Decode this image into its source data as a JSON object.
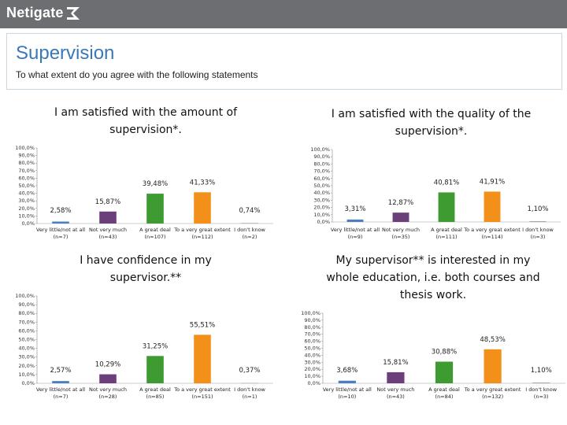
{
  "header": {
    "logo_text": "Netigate"
  },
  "page": {
    "title": "Supervision",
    "subtitle": "To what extent do you agree with the following statements"
  },
  "colors": {
    "header": "#6d6e71",
    "title": "#3b78b8",
    "bars": [
      "#4a7fc1",
      "#6b3f7a",
      "#3e9b31",
      "#f29019",
      "#a6a6a6"
    ]
  },
  "chart_data": [
    {
      "type": "bar",
      "title": "I am satisfied with the amount of supervision*.",
      "categories": [
        "Very little/not at all (n=7)",
        "Not very much (n=43)",
        "A great deal (n=107)",
        "To a very great extent (n=112)",
        "I don't know (n=2)"
      ],
      "values": [
        2.58,
        15.87,
        39.48,
        41.33,
        0.74
      ],
      "labels": [
        "2,58%",
        "15,87%",
        "39,48%",
        "41,33%",
        "0,74%"
      ],
      "yticks": [
        "100,0%",
        "90,0%",
        "80,0%",
        "70,0%",
        "60,0%",
        "50,0%",
        "40,0%",
        "30,0%",
        "20,0%",
        "10,0%",
        "0,0%"
      ],
      "ylim": [
        0,
        100
      ]
    },
    {
      "type": "bar",
      "title": "I am satisfied with the quality of the supervision*.",
      "categories": [
        "Very little/not at all (n=9)",
        "Not very much (n=35)",
        "A great deal (n=111)",
        "To a very great extent (n=114)",
        "I don't know (n=3)"
      ],
      "values": [
        3.31,
        12.87,
        40.81,
        41.91,
        1.1
      ],
      "labels": [
        "3,31%",
        "12,87%",
        "40,81%",
        "41,91%",
        "1,10%"
      ],
      "yticks": [
        "100,0%",
        "90,0%",
        "80,0%",
        "70,0%",
        "60,0%",
        "50,0%",
        "40,0%",
        "30,0%",
        "20,0%",
        "10,0%",
        "0,0%"
      ],
      "ylim": [
        0,
        100
      ]
    },
    {
      "type": "bar",
      "title": "I have confidence in my supervisor.**",
      "categories": [
        "Very little/not at all (n=7)",
        "Not very much (n=28)",
        "A great deal (n=85)",
        "To a very great extent (n=151)",
        "I don't know (n=1)"
      ],
      "values": [
        2.57,
        10.29,
        31.25,
        55.51,
        0.37
      ],
      "labels": [
        "2,57%",
        "10,29%",
        "31,25%",
        "55,51%",
        "0,37%"
      ],
      "yticks": [
        "100,0%",
        "90,0%",
        "80,0%",
        "70,0%",
        "60,0%",
        "50,0%",
        "40,0%",
        "30,0%",
        "20,0%",
        "10,0%",
        "0,0%"
      ],
      "ylim": [
        0,
        100
      ]
    },
    {
      "type": "bar",
      "title": "My supervisor** is interested in my whole education, i.e. both courses and thesis work.",
      "categories": [
        "Very little/not at all (n=10)",
        "Not very much (n=43)",
        "A great deal (n=84)",
        "To a very great extent (n=132)",
        "I don't know (n=3)"
      ],
      "values": [
        3.68,
        15.81,
        30.88,
        48.53,
        1.1
      ],
      "labels": [
        "3,68%",
        "15,81%",
        "30,88%",
        "48,53%",
        "1,10%"
      ],
      "yticks": [
        "100,0%",
        "90,0%",
        "80,0%",
        "70,0%",
        "60,0%",
        "50,0%",
        "40,0%",
        "30,0%",
        "20,0%",
        "10,0%",
        "0,0%"
      ],
      "ylim": [
        0,
        100
      ]
    }
  ]
}
